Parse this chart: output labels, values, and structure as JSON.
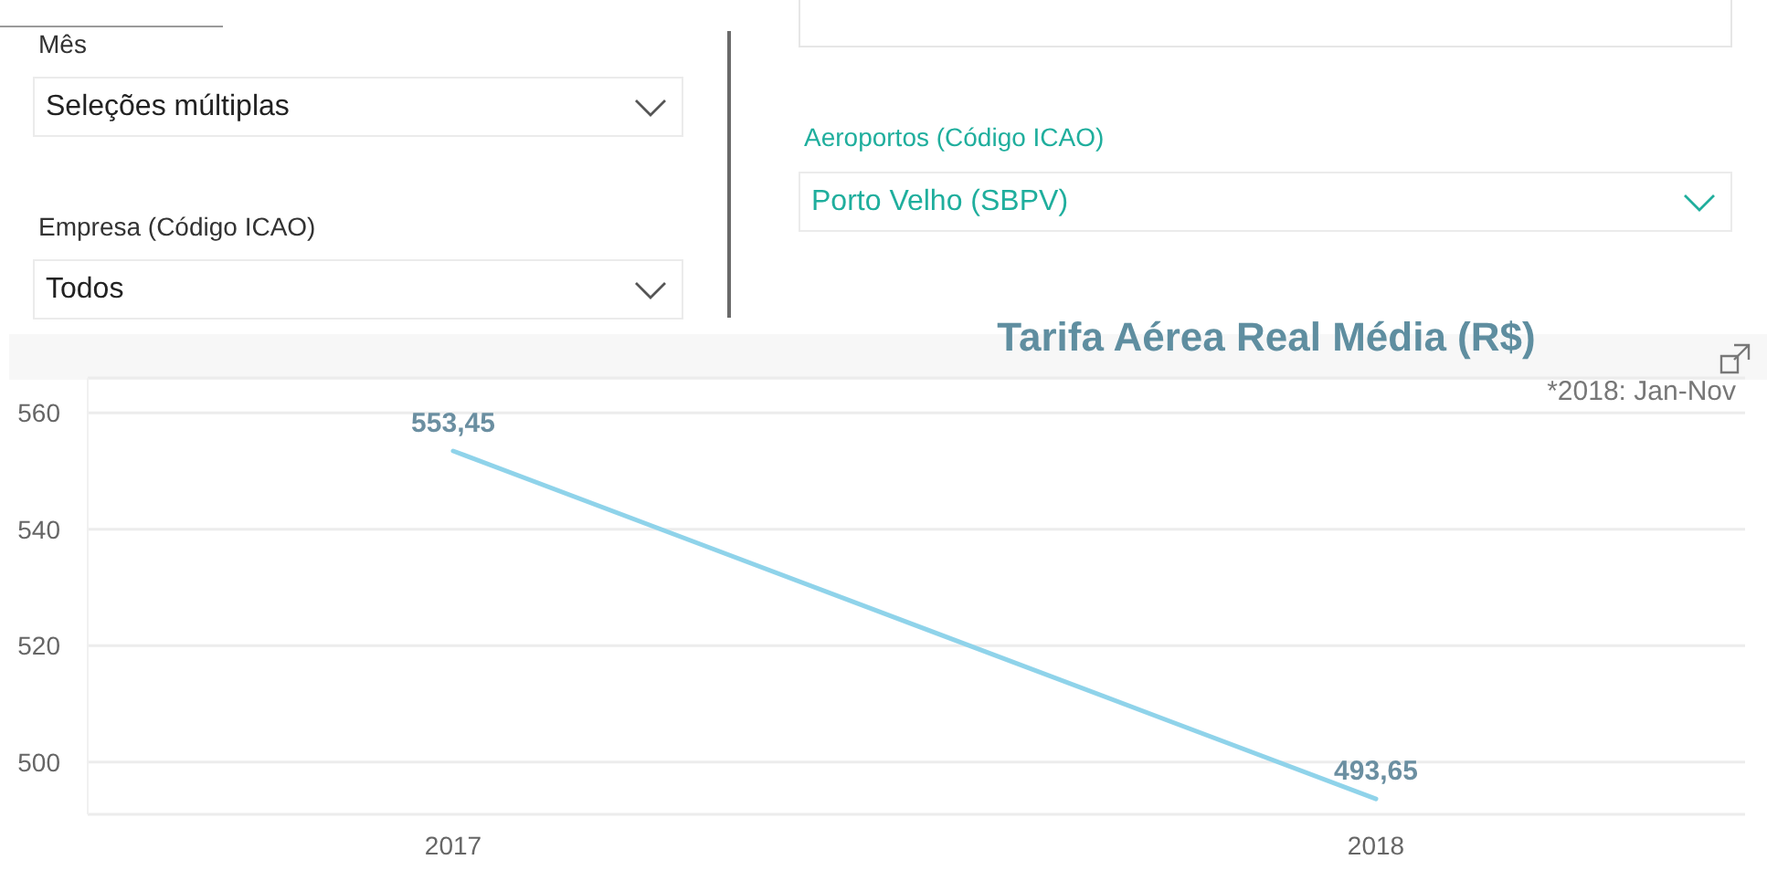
{
  "chart_data": [
    {
      "type": "other",
      "annotations": [
        "Mês",
        "Seleções múltiplas",
        "Empresa (Código ICAO)",
        "Todos",
        "Aeroportos (Código ICAO)",
        "Porto Velho (SBPV)"
      ]
    },
    {
      "type": "line",
      "title": "Tarifa Aérea Real Média (R$)",
      "annotations": [
        "*2018: Jan-Nov"
      ],
      "categories": [
        "2017",
        "2018"
      ],
      "series": [
        {
          "color": "#8fd3ea",
          "values": [
            553.45,
            493.65
          ],
          "value_labels": [
            "553,45",
            "493,65"
          ]
        }
      ],
      "ylim": [
        491,
        566
      ],
      "yticks": [
        500,
        520,
        540,
        560
      ],
      "grid": "y",
      "legend": false
    }
  ]
}
